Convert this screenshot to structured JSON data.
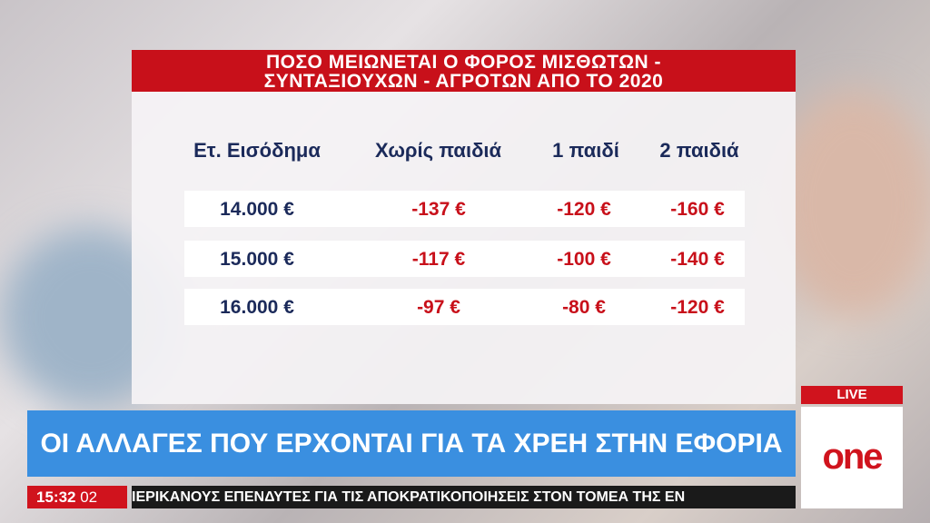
{
  "graphic": {
    "title_line1": "ΠΟΣΟ ΜΕΙΩΝΕΤΑΙ Ο ΦΟΡΟΣ ΜΙΣΘΩΤΩΝ -",
    "title_line2": "ΣΥΝΤΑΞΙΟΥΧΩΝ - ΑΓΡΟΤΩΝ ΑΠΟ ΤΟ 2020",
    "headers": [
      "Ετ. Εισόδημα",
      "Χωρίς παιδιά",
      "1 παιδί",
      "2 παιδιά"
    ],
    "rows": [
      [
        "14.000 €",
        "-137 €",
        "-120 €",
        "-160 €"
      ],
      [
        "15.000 €",
        "-117 €",
        "-100 €",
        "-140 €"
      ],
      [
        "16.000 €",
        "-97 €",
        "-80 €",
        "-120 €"
      ]
    ]
  },
  "banner": {
    "headline": "ΟΙ ΑΛΛΑΓΕΣ ΠΟΥ ΕΡΧΟΝΤΑΙ ΓΙΑ ΤΑ ΧΡΕΗ ΣΤΗΝ ΕΦΟΡΙΑ"
  },
  "clock": {
    "time": "15:32",
    "seconds": "02"
  },
  "ticker": {
    "text": "ΙΕΡΙΚΑΝΟΥΣ ΕΠΕΝΔΥΤΕΣ ΓΙΑ ΤΙΣ ΑΠΟΚΡΑΤΙΚΟΠΟΙΗΣΕΙΣ ΣΤΟΝ ΤΟΜΕΑ ΤΗΣ ΕΝ"
  },
  "channel": {
    "live_label": "LIVE",
    "logo": "one"
  },
  "colors": {
    "red": "#c8101a",
    "blue": "#3a8fe0",
    "navy": "#1b2a5a"
  }
}
